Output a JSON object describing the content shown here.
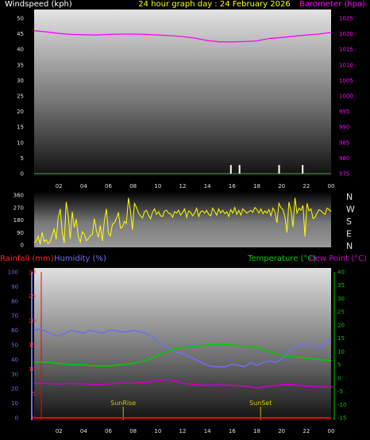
{
  "header": {
    "windspeed_label": "Windspeed (kph)",
    "graph_title": "24 hour graph day : 24 February 2026",
    "barometer_label": "Barometer (hpa)"
  },
  "bottom_header": {
    "rainfall_label": "Rainfall (mm)",
    "humidity_label": "Humidity (%)",
    "temperature_label": "Temperature (°C)",
    "dewpoint_label": "Dew Point (°C)"
  },
  "annotations": {
    "sunrise": "SunRise",
    "sunset": "SunSet"
  },
  "colors": {
    "windspeed": "#ffffff",
    "barometer": "#ff00ff",
    "direction": "#ffff00",
    "humidity": "#6f6ff0",
    "temperature": "#00cc00",
    "dewpoint": "#cc00cc",
    "rainfall": "#ff0000",
    "sun_marker": "#c8b400"
  },
  "chart_data": [
    {
      "type": "line",
      "title": "24 hour graph day : 24 February 2026",
      "x_tick_labels": [
        "02",
        "04",
        "06",
        "08",
        "10",
        "12",
        "14",
        "16",
        "18",
        "20",
        "22",
        "00"
      ],
      "left_axis": {
        "label": "Windspeed (kph)",
        "ticks": [
          0,
          5,
          10,
          15,
          20,
          25,
          30,
          35,
          40,
          45,
          50
        ],
        "range": [
          0,
          50
        ]
      },
      "right_axis": {
        "label": "Barometer (hpa)",
        "ticks": [
          975,
          980,
          985,
          990,
          995,
          1000,
          1005,
          1010,
          1015,
          1020,
          1025
        ],
        "range": [
          975,
          1025
        ]
      },
      "series": [
        {
          "name": "Barometer (hpa)",
          "axis": "right",
          "x": [
            0,
            1,
            2,
            3,
            4,
            5,
            6,
            7,
            8,
            9,
            10,
            11,
            12,
            13,
            14,
            15,
            16,
            17,
            18,
            19,
            20,
            21,
            22,
            23,
            24
          ],
          "values": [
            1021,
            1020.6,
            1020.1,
            1019.8,
            1019.7,
            1019.6,
            1019.8,
            1019.9,
            1019.9,
            1019.8,
            1019.6,
            1019.4,
            1019.1,
            1018.6,
            1017.8,
            1017.4,
            1017.4,
            1017.5,
            1017.7,
            1018.5,
            1018.8,
            1019.2,
            1019.6,
            1019.9,
            1020.4
          ]
        },
        {
          "name": "Windspeed (kph)",
          "axis": "left",
          "type": "spikes",
          "x": [
            15.9,
            16.6,
            19.8,
            21.7
          ],
          "values": [
            2,
            2,
            2,
            2
          ]
        }
      ],
      "grid": false
    },
    {
      "type": "scatter",
      "name": "wind_direction",
      "left_axis": {
        "ticks": [
          0,
          90,
          180,
          270,
          360
        ],
        "range": [
          0,
          360
        ]
      },
      "right_axis_labels": [
        "N",
        "W",
        "S",
        "E",
        "N"
      ],
      "x_range": [
        0,
        24
      ],
      "values": [
        15,
        28,
        62,
        5,
        90,
        24,
        38,
        10,
        25,
        70,
        115,
        40,
        195,
        260,
        90,
        15,
        310,
        205,
        45,
        240,
        125,
        185,
        60,
        20,
        95,
        80,
        30,
        45,
        68,
        75,
        190,
        110,
        55,
        140,
        28,
        172,
        260,
        88,
        65,
        150,
        160,
        190,
        235,
        120,
        130,
        170,
        155,
        340,
        240,
        110,
        300,
        270,
        230,
        210,
        195,
        240,
        250,
        215,
        190,
        235,
        260,
        220,
        240,
        210,
        205,
        245,
        250,
        230,
        225,
        200,
        240,
        230,
        250,
        215,
        235,
        260,
        200,
        245,
        235,
        210,
        230,
        265,
        205,
        240,
        245,
        230,
        250,
        220,
        210,
        265,
        240,
        215,
        260,
        230,
        250,
        225,
        240,
        205,
        255,
        230,
        270,
        220,
        250,
        215,
        260,
        245,
        230,
        240,
        250,
        235,
        270,
        255,
        230,
        260,
        225,
        245,
        230,
        255,
        210,
        265,
        240,
        160,
        300,
        270,
        255,
        200,
        90,
        310,
        245,
        130,
        340,
        230,
        265,
        250,
        285,
        60,
        300,
        245,
        260,
        190,
        200,
        230,
        255,
        245,
        230,
        220,
        265,
        255,
        240
      ],
      "grid": false
    },
    {
      "type": "line",
      "x_tick_labels": [
        "02",
        "04",
        "06",
        "08",
        "10",
        "12",
        "14",
        "16",
        "18",
        "20",
        "22",
        "00"
      ],
      "left_axis_humidity": {
        "label": "Humidity (%)",
        "ticks": [
          0,
          10,
          20,
          30,
          40,
          50,
          60,
          70,
          80,
          90,
          100
        ],
        "range": [
          0,
          100
        ]
      },
      "left_axis_rain": {
        "label": "Rainfall (mm)",
        "ticks": [
          0,
          5,
          10,
          15,
          20,
          25,
          30
        ],
        "range": [
          0,
          30
        ]
      },
      "right_axis": {
        "label": "Temperature (°C)",
        "ticks": [
          -15,
          -10,
          -5,
          0,
          5,
          10,
          15,
          20,
          25,
          30,
          35,
          40
        ],
        "range": [
          -15,
          40
        ]
      },
      "annotations": [
        {
          "label": "SunRise",
          "x": 7.2
        },
        {
          "label": "SunSet",
          "x": 18.3
        }
      ],
      "series": [
        {
          "name": "Humidity (%)",
          "axis": "humidity",
          "x": [
            0,
            0.5,
            1,
            1.5,
            2,
            2.5,
            3,
            3.5,
            4,
            4.5,
            5,
            5.5,
            6,
            6.5,
            7,
            7.5,
            8,
            8.5,
            9,
            9.5,
            10,
            10.5,
            11,
            11.5,
            12,
            12.5,
            13,
            13.5,
            14,
            14.5,
            15,
            15.5,
            16,
            16.5,
            17,
            17.5,
            18,
            18.5,
            19,
            19.5,
            20,
            20.5,
            21,
            21.5,
            22,
            22.5,
            23,
            23.5,
            24
          ],
          "values": [
            60,
            61,
            59,
            57,
            56,
            58,
            60,
            59,
            58,
            60,
            59,
            58,
            60,
            60,
            59,
            59,
            60,
            59,
            58,
            56,
            52,
            49,
            47,
            45,
            44,
            42,
            40,
            38,
            36,
            35,
            35,
            35,
            37,
            36,
            35,
            38,
            36,
            38,
            39,
            38,
            40,
            45,
            49,
            50,
            51,
            50,
            47,
            51,
            55
          ]
        },
        {
          "name": "Temperature (°C)",
          "axis": "temperature",
          "x": [
            0,
            1,
            2,
            3,
            4,
            5,
            6,
            7,
            8,
            9,
            10,
            11,
            12,
            13,
            14,
            15,
            16,
            17,
            18,
            19,
            20,
            21,
            22,
            23,
            24
          ],
          "values": [
            6,
            6,
            5.5,
            5,
            5,
            4.6,
            4.5,
            5,
            5.5,
            6.5,
            8.5,
            10.5,
            11.5,
            12,
            12.5,
            12.8,
            12.5,
            12,
            11.5,
            10,
            8.5,
            8,
            7.5,
            7,
            6.5
          ]
        },
        {
          "name": "Dew Point (°C)",
          "axis": "temperature",
          "x": [
            0,
            1,
            2,
            3,
            4,
            5,
            6,
            7,
            8,
            9,
            10,
            11,
            12,
            13,
            14,
            15,
            16,
            17,
            18,
            19,
            20,
            21,
            22,
            23,
            24
          ],
          "values": [
            -2,
            -2,
            -2.3,
            -2,
            -2.2,
            -2.5,
            -2.3,
            -1.8,
            -2,
            -1.5,
            -1,
            -0.5,
            -2,
            -2.5,
            -2.8,
            -2.5,
            -2.8,
            -3,
            -3.8,
            -3,
            -2.5,
            -2.5,
            -3,
            -3.2,
            -3.5
          ]
        },
        {
          "name": "Rainfall (mm)",
          "axis": "rain",
          "x": [
            0,
            24
          ],
          "values": [
            0,
            0
          ]
        }
      ],
      "grid": false
    }
  ]
}
